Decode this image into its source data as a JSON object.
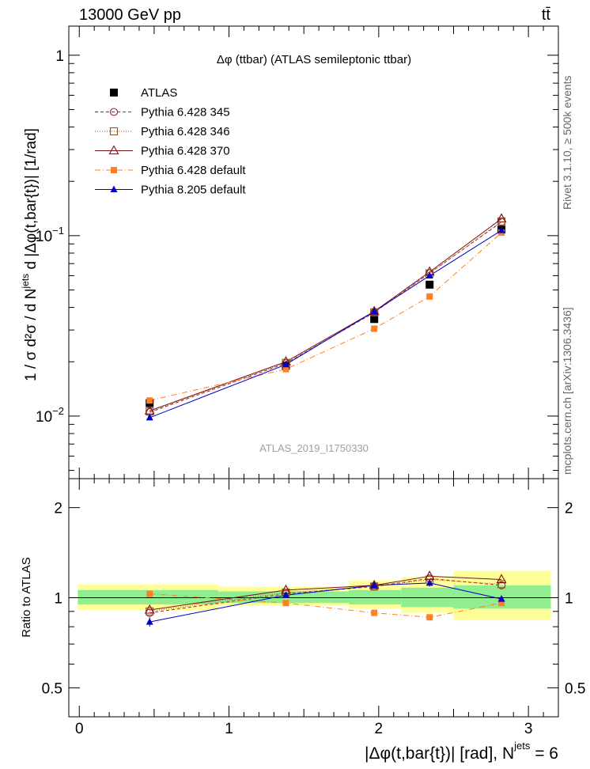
{
  "header": {
    "energy_label": "13000 GeV pp",
    "process_label": "tt̄"
  },
  "side_labels": {
    "rivet": "Rivet 3.1.10, ≥ 500k events",
    "mcplots": "mcplots.cern.ch [arXiv:1306.3436]"
  },
  "colors": {
    "band_inner": "#90ee90",
    "band_outer": "#ffff99"
  },
  "chart_data": [
    {
      "type": "line",
      "panel": "main",
      "title": "Δφ (ttbar) (ATLAS semileptonic ttbar)",
      "watermark": "ATLAS_2019_I1750330",
      "ylabel": "1 / σ d²σ / d N^jets d |Δφ(t,bar{t})| [1/rad]",
      "yscale": "log",
      "xlim": [
        -0.07,
        3.2
      ],
      "ylim": [
        0.0045,
        1.45
      ],
      "x": [
        0.47,
        1.38,
        1.97,
        2.34,
        2.82
      ],
      "series": [
        {
          "name": "ATLAS",
          "color": "#000000",
          "marker": "square-filled",
          "line": "none",
          "values": [
            0.0118,
            0.019,
            0.0345,
            0.0535,
            0.108
          ],
          "errors": [
            0.0007,
            0.0008,
            0.0012,
            0.0015,
            0.003
          ]
        },
        {
          "name": "Pythia 6.428 345",
          "color": "#b22222",
          "marker": "circle-open",
          "line": "dashed",
          "values": [
            0.0105,
            0.0196,
            0.0375,
            0.062,
            0.119
          ]
        },
        {
          "name": "Pythia 6.428 346",
          "color": "#8b5a2b",
          "marker": "square-open",
          "line": "dotted",
          "values": [
            0.0106,
            0.0197,
            0.0376,
            0.0618,
            0.12
          ]
        },
        {
          "name": "Pythia 6.428 370",
          "color": "#7a1414",
          "marker": "triangle-open",
          "line": "solid",
          "values": [
            0.0107,
            0.02,
            0.038,
            0.063,
            0.124
          ]
        },
        {
          "name": "Pythia 6.428 default",
          "color": "#ff7f24",
          "marker": "square-filled-small",
          "line": "dashdot",
          "values": [
            0.0122,
            0.0182,
            0.0305,
            0.046,
            0.104
          ]
        },
        {
          "name": "Pythia 8.205 default",
          "color": "#0000cd",
          "marker": "triangle-filled",
          "line": "solid",
          "values": [
            0.0098,
            0.0193,
            0.038,
            0.06,
            0.107
          ]
        }
      ],
      "yticks": [
        {
          "value": 0.01,
          "base": "10",
          "exp": "−2"
        },
        {
          "value": 0.1,
          "base": "10",
          "exp": "−1"
        },
        {
          "value": 1,
          "base": "1",
          "exp": ""
        }
      ],
      "xticks": [
        0,
        1,
        2,
        3
      ]
    },
    {
      "type": "line",
      "panel": "ratio",
      "ylabel": "Ratio to ATLAS",
      "xlabel": "|Δφ(t,bar{t})| [rad], N^jets = 6",
      "yscale": "log",
      "ylim": [
        0.4,
        2.5
      ],
      "yticks": [
        0.5,
        1,
        2
      ],
      "xticks": [
        0,
        1,
        2,
        3
      ],
      "bins": [
        [
          -0.01,
          0.93
        ],
        [
          0.93,
          1.8
        ],
        [
          1.8,
          2.15
        ],
        [
          2.15,
          2.5
        ],
        [
          2.5,
          3.15
        ]
      ],
      "band_inner": [
        [
          0.95,
          1.06
        ],
        [
          0.96,
          1.05
        ],
        [
          0.95,
          1.06
        ],
        [
          0.93,
          1.08
        ],
        [
          0.92,
          1.1
        ]
      ],
      "band_outer": [
        [
          0.91,
          1.11
        ],
        [
          0.94,
          1.09
        ],
        [
          0.92,
          1.14
        ],
        [
          0.89,
          1.17
        ],
        [
          0.84,
          1.23
        ]
      ],
      "x": [
        0.47,
        1.38,
        1.97,
        2.34,
        2.82
      ],
      "series": [
        {
          "name": "Pythia 6.428 345",
          "values": [
            0.89,
            1.03,
            1.09,
            1.16,
            1.1
          ]
        },
        {
          "name": "Pythia 6.428 346",
          "values": [
            0.9,
            1.04,
            1.09,
            1.15,
            1.11
          ]
        },
        {
          "name": "Pythia 6.428 370",
          "values": [
            0.91,
            1.06,
            1.1,
            1.18,
            1.15
          ]
        },
        {
          "name": "Pythia 6.428 default",
          "values": [
            1.03,
            0.96,
            0.89,
            0.86,
            0.96
          ]
        },
        {
          "name": "Pythia 8.205 default",
          "values": [
            0.83,
            1.02,
            1.1,
            1.12,
            0.99
          ],
          "errors": [
            0.03,
            0.02,
            0.03,
            0.03,
            0.02
          ]
        }
      ]
    }
  ]
}
